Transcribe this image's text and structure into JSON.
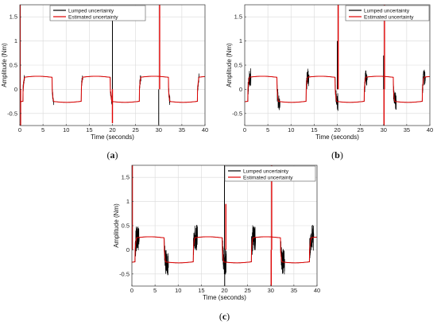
{
  "chart_data": [
    {
      "type": "line",
      "caption_letter": "a",
      "xlabel": "Time (seconds)",
      "ylabel": "Amplitude (Nm)",
      "xlim": [
        0,
        40
      ],
      "ylim": [
        -0.75,
        1.75
      ],
      "xticks": [
        0,
        5,
        10,
        15,
        20,
        25,
        30,
        35,
        40
      ],
      "yticks": [
        -0.5,
        0,
        0.5,
        1,
        1.5
      ],
      "ytick_labels": [
        "-0.5",
        "0",
        "0.5",
        "1",
        "1.5"
      ],
      "grid": true,
      "legend_position": "top-center",
      "series": [
        {
          "name": "Lumped uncertainty",
          "color": "#000000",
          "style": "low chatter",
          "peaks": [
            [
              0.1,
              1.75
            ],
            [
              20,
              1.42
            ],
            [
              30,
              -0.75
            ]
          ]
        },
        {
          "name": "Estimated uncertainty",
          "color": "#e00000",
          "square_wave_amplitude": 0.27,
          "spikes": [
            [
              0.05,
              1.75
            ],
            [
              0.15,
              -0.75
            ],
            [
              20,
              -0.7
            ],
            [
              30.2,
              1.75
            ]
          ]
        }
      ]
    },
    {
      "type": "line",
      "caption_letter": "b",
      "xlabel": "Time (seconds)",
      "ylabel": "Amplitude (Nm)",
      "xlim": [
        0,
        40
      ],
      "ylim": [
        -0.75,
        1.75
      ],
      "xticks": [
        0,
        5,
        10,
        15,
        20,
        25,
        30,
        35,
        40
      ],
      "yticks": [
        -0.5,
        0,
        0.5,
        1,
        1.5
      ],
      "ytick_labels": [
        "-0.5",
        "0",
        "0.5",
        "1",
        "1.5"
      ],
      "grid": true,
      "legend_position": "top-right",
      "series": [
        {
          "name": "Lumped uncertainty",
          "color": "#000000",
          "style": "medium chatter",
          "peaks": [
            [
              20,
              1.0
            ],
            [
              30,
              0.7
            ]
          ]
        },
        {
          "name": "Estimated uncertainty",
          "color": "#e00000",
          "square_wave_amplitude": 0.27,
          "spikes": [
            [
              20.2,
              1.75
            ],
            [
              30.1,
              -0.75
            ],
            [
              30.2,
              1.75
            ]
          ]
        }
      ]
    },
    {
      "type": "line",
      "caption_letter": "c",
      "xlabel": "Time (seconds)",
      "ylabel": "Amplitude (Nm)",
      "xlim": [
        0,
        40
      ],
      "ylim": [
        -0.75,
        1.75
      ],
      "xticks": [
        0,
        5,
        10,
        15,
        20,
        25,
        30,
        35,
        40
      ],
      "yticks": [
        -0.5,
        0,
        0.5,
        1,
        1.5
      ],
      "ytick_labels": [
        "-0.5",
        "0",
        "0.5",
        "1",
        "1.5"
      ],
      "grid": true,
      "legend_position": "top-right",
      "series": [
        {
          "name": "Lumped uncertainty",
          "color": "#000000",
          "style": "heavy chatter",
          "peaks": [
            [
              20,
              1.75
            ],
            [
              20.05,
              -0.75
            ]
          ]
        },
        {
          "name": "Estimated uncertainty",
          "color": "#e00000",
          "square_wave_amplitude": 0.27,
          "spikes": [
            [
              0.1,
              1.75
            ],
            [
              20.3,
              0.95
            ],
            [
              30.1,
              -0.75
            ],
            [
              30.2,
              1.75
            ]
          ]
        }
      ]
    }
  ]
}
